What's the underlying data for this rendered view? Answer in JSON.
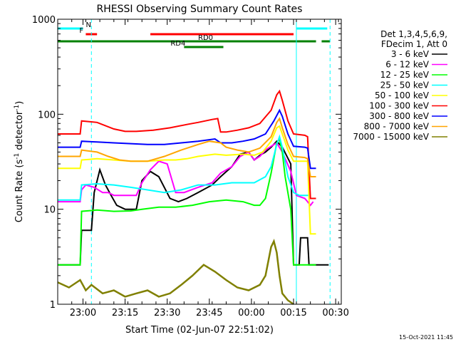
{
  "chart_data": {
    "type": "line",
    "title": "RHESSI Observing Summary Count Rates",
    "xlabel": "Start Time (02-Jun-07 22:51:02)",
    "ylabel_main": "Count Rate (s",
    "ylabel_sup1": "-1",
    "ylabel_mid": " detector",
    "ylabel_sup2": "-1",
    "ylabel_end": ")",
    "ylabel": "Count Rate (s-1 detector-1)",
    "y_scale": "log",
    "ylim": [
      1,
      1000
    ],
    "xlim_minutes": [
      0,
      101
    ],
    "x_ticks": [
      {
        "label": "23:00",
        "min": 9
      },
      {
        "label": "23:15",
        "min": 24
      },
      {
        "label": "23:30",
        "min": 39
      },
      {
        "label": "23:45",
        "min": 54
      },
      {
        "label": "00:00",
        "min": 69
      },
      {
        "label": "00:15",
        "min": 84
      },
      {
        "label": "00:30",
        "min": 99
      }
    ],
    "y_ticks": [
      {
        "label": "1",
        "value": 1
      },
      {
        "label": "10",
        "value": 10
      },
      {
        "label": "100",
        "value": 100
      },
      {
        "label": "1000",
        "value": 1000
      }
    ],
    "legend_header": [
      "Det 1,3,4,5,6,9,",
      "FDecim 1, Att 0"
    ],
    "legend_position": "right",
    "series": [
      {
        "name": "3 - 6 keV",
        "color": "#000000",
        "points": [
          [
            0,
            2.6
          ],
          [
            8,
            2.6
          ],
          [
            8.5,
            6
          ],
          [
            12,
            6
          ],
          [
            13,
            15
          ],
          [
            15,
            26
          ],
          [
            17,
            18
          ],
          [
            19,
            14
          ],
          [
            21,
            11
          ],
          [
            24,
            10
          ],
          [
            28,
            10
          ],
          [
            30,
            20
          ],
          [
            33,
            25
          ],
          [
            36,
            22
          ],
          [
            40,
            13
          ],
          [
            43,
            12
          ],
          [
            46,
            13
          ],
          [
            50,
            15
          ],
          [
            55,
            18
          ],
          [
            58,
            22
          ],
          [
            62,
            28
          ],
          [
            65,
            38
          ],
          [
            68,
            40
          ],
          [
            70,
            33
          ],
          [
            72,
            37
          ],
          [
            74,
            40
          ],
          [
            76,
            45
          ],
          [
            78,
            52
          ],
          [
            80,
            45
          ],
          [
            83,
            30
          ],
          [
            84,
            2.6
          ],
          [
            86,
            2.6
          ],
          [
            86.5,
            5
          ],
          [
            89,
            5
          ],
          [
            89.5,
            2.6
          ],
          [
            96,
            2.6
          ],
          [
            96.5,
            2.6
          ]
        ]
      },
      {
        "name": "6 - 12 keV",
        "color": "#ff00ff",
        "points": [
          [
            0,
            12
          ],
          [
            8,
            12
          ],
          [
            8.5,
            16
          ],
          [
            10,
            18
          ],
          [
            13,
            17
          ],
          [
            16,
            15
          ],
          [
            18,
            15
          ],
          [
            20,
            14
          ],
          [
            24,
            14
          ],
          [
            28,
            14
          ],
          [
            30,
            19
          ],
          [
            33,
            26
          ],
          [
            36,
            32
          ],
          [
            39,
            30
          ],
          [
            42,
            15
          ],
          [
            45,
            15
          ],
          [
            50,
            17
          ],
          [
            55,
            19
          ],
          [
            58,
            24
          ],
          [
            62,
            28
          ],
          [
            65,
            36
          ],
          [
            68,
            40
          ],
          [
            70,
            33
          ],
          [
            72,
            36
          ],
          [
            74,
            42
          ],
          [
            76,
            46
          ],
          [
            78,
            50
          ],
          [
            80,
            40
          ],
          [
            83,
            25
          ],
          [
            85,
            14
          ],
          [
            88,
            13
          ],
          [
            89,
            12
          ],
          [
            90,
            11
          ],
          [
            91,
            12
          ]
        ]
      },
      {
        "name": "12 - 25 keV",
        "color": "#00ff00",
        "points": [
          [
            0,
            2.6
          ],
          [
            8,
            2.6
          ],
          [
            8.5,
            9.5
          ],
          [
            14,
            9.8
          ],
          [
            20,
            9.5
          ],
          [
            26,
            9.6
          ],
          [
            30,
            10
          ],
          [
            36,
            10.5
          ],
          [
            42,
            10.5
          ],
          [
            48,
            11
          ],
          [
            54,
            12
          ],
          [
            60,
            12.5
          ],
          [
            66,
            12
          ],
          [
            70,
            11
          ],
          [
            72,
            11
          ],
          [
            74,
            13
          ],
          [
            76,
            24
          ],
          [
            78,
            50
          ],
          [
            79,
            55
          ],
          [
            80,
            40
          ],
          [
            81,
            22
          ],
          [
            83,
            10
          ],
          [
            84,
            2.6
          ],
          [
            88,
            2.6
          ],
          [
            88.5,
            2.6
          ],
          [
            91,
            2.6
          ],
          [
            92,
            2.6
          ]
        ]
      },
      {
        "name": "25 - 50 keV",
        "color": "#00ffff",
        "points": [
          [
            0,
            12.5
          ],
          [
            8,
            12.5
          ],
          [
            8.5,
            18
          ],
          [
            14,
            18.5
          ],
          [
            20,
            18
          ],
          [
            26,
            17
          ],
          [
            32,
            16
          ],
          [
            38,
            15
          ],
          [
            44,
            16
          ],
          [
            50,
            18
          ],
          [
            56,
            18
          ],
          [
            62,
            19
          ],
          [
            66,
            19
          ],
          [
            70,
            19
          ],
          [
            74,
            22
          ],
          [
            76,
            28
          ],
          [
            78,
            48
          ],
          [
            79,
            58
          ],
          [
            80,
            45
          ],
          [
            82,
            22
          ],
          [
            84,
            15
          ],
          [
            86,
            14
          ],
          [
            88,
            14
          ],
          [
            89,
            14
          ],
          [
            90,
            14
          ]
        ]
      },
      {
        "name": "50 - 100 keV",
        "color": "#ffff00",
        "points": [
          [
            0,
            27
          ],
          [
            8,
            27
          ],
          [
            8.5,
            33
          ],
          [
            14,
            34
          ],
          [
            20,
            33
          ],
          [
            26,
            32
          ],
          [
            32,
            32
          ],
          [
            38,
            33
          ],
          [
            42,
            33
          ],
          [
            46,
            34
          ],
          [
            50,
            36
          ],
          [
            56,
            38
          ],
          [
            60,
            37
          ],
          [
            66,
            38
          ],
          [
            70,
            37
          ],
          [
            73,
            40
          ],
          [
            76,
            52
          ],
          [
            78,
            72
          ],
          [
            79,
            75
          ],
          [
            80,
            62
          ],
          [
            82,
            42
          ],
          [
            84,
            32
          ],
          [
            88,
            32
          ],
          [
            89,
            32
          ],
          [
            90,
            5.5
          ],
          [
            91,
            5.5
          ],
          [
            92,
            5.5
          ]
        ]
      },
      {
        "name": "100 - 300 keV",
        "color": "#ff0000",
        "points": [
          [
            0,
            62
          ],
          [
            8,
            62
          ],
          [
            8.5,
            85
          ],
          [
            14,
            82
          ],
          [
            20,
            70
          ],
          [
            24,
            66
          ],
          [
            28,
            66
          ],
          [
            34,
            68
          ],
          [
            40,
            72
          ],
          [
            46,
            78
          ],
          [
            50,
            82
          ],
          [
            55,
            88
          ],
          [
            57,
            90
          ],
          [
            58,
            65
          ],
          [
            60,
            65
          ],
          [
            64,
            68
          ],
          [
            68,
            72
          ],
          [
            72,
            80
          ],
          [
            76,
            110
          ],
          [
            78,
            160
          ],
          [
            79,
            175
          ],
          [
            80,
            140
          ],
          [
            82,
            85
          ],
          [
            84,
            62
          ],
          [
            88,
            60
          ],
          [
            89,
            58
          ],
          [
            90,
            13
          ],
          [
            92,
            13
          ]
        ]
      },
      {
        "name": "300 - 800 keV",
        "color": "#0000ff",
        "points": [
          [
            0,
            45
          ],
          [
            8,
            45
          ],
          [
            8.5,
            52
          ],
          [
            14,
            51
          ],
          [
            20,
            50
          ],
          [
            26,
            49
          ],
          [
            32,
            48
          ],
          [
            38,
            48
          ],
          [
            44,
            50
          ],
          [
            50,
            52
          ],
          [
            56,
            55
          ],
          [
            58,
            50
          ],
          [
            62,
            50
          ],
          [
            66,
            52
          ],
          [
            70,
            55
          ],
          [
            74,
            62
          ],
          [
            77,
            85
          ],
          [
            79,
            110
          ],
          [
            80,
            95
          ],
          [
            82,
            62
          ],
          [
            84,
            46
          ],
          [
            88,
            45
          ],
          [
            89,
            44
          ],
          [
            90,
            27
          ],
          [
            92,
            27
          ]
        ]
      },
      {
        "name": "800 - 7000 keV",
        "color": "#ffa500",
        "points": [
          [
            0,
            36
          ],
          [
            8,
            36
          ],
          [
            8.5,
            42
          ],
          [
            14,
            40
          ],
          [
            18,
            36
          ],
          [
            22,
            33
          ],
          [
            26,
            32
          ],
          [
            32,
            32
          ],
          [
            38,
            36
          ],
          [
            44,
            42
          ],
          [
            50,
            48
          ],
          [
            54,
            52
          ],
          [
            58,
            50
          ],
          [
            60,
            45
          ],
          [
            64,
            42
          ],
          [
            68,
            40
          ],
          [
            72,
            44
          ],
          [
            76,
            58
          ],
          [
            78,
            82
          ],
          [
            79,
            90
          ],
          [
            80,
            72
          ],
          [
            82,
            48
          ],
          [
            84,
            36
          ],
          [
            88,
            35
          ],
          [
            89,
            34
          ],
          [
            90,
            22
          ],
          [
            92,
            22
          ]
        ]
      },
      {
        "name": "7000 - 15000 keV",
        "color": "#808000",
        "points": [
          [
            0,
            1.7
          ],
          [
            4,
            1.5
          ],
          [
            8,
            1.8
          ],
          [
            10,
            1.4
          ],
          [
            12,
            1.6
          ],
          [
            16,
            1.3
          ],
          [
            20,
            1.4
          ],
          [
            24,
            1.2
          ],
          [
            28,
            1.3
          ],
          [
            32,
            1.4
          ],
          [
            36,
            1.2
          ],
          [
            40,
            1.3
          ],
          [
            44,
            1.6
          ],
          [
            48,
            2.0
          ],
          [
            52,
            2.6
          ],
          [
            56,
            2.2
          ],
          [
            60,
            1.8
          ],
          [
            64,
            1.5
          ],
          [
            68,
            1.4
          ],
          [
            72,
            1.6
          ],
          [
            74,
            2.0
          ],
          [
            76,
            4.0
          ],
          [
            77,
            4.6
          ],
          [
            78,
            3.5
          ],
          [
            79,
            2.0
          ],
          [
            80,
            1.3
          ],
          [
            82,
            1.1
          ],
          [
            84,
            1.0
          ]
        ]
      }
    ],
    "flags": [
      {
        "label": "N",
        "color": "#00ffff",
        "segments": [
          [
            0,
            9
          ],
          [
            85,
            96
          ]
        ],
        "level": 1
      },
      {
        "label": "F",
        "color": "#ff0000",
        "segments": [
          [
            10,
            14
          ],
          [
            33,
            84
          ]
        ],
        "level": 2
      },
      {
        "label": "RD0",
        "color": "#008000",
        "segments": [
          [
            0,
            92
          ],
          [
            94,
            97
          ]
        ],
        "level": 3
      },
      {
        "label": "RD4",
        "color": "#008000",
        "segments": [
          [
            45,
            59
          ]
        ],
        "level": 4
      }
    ],
    "vlines_minutes": [
      {
        "min": 0,
        "style": "solid"
      },
      {
        "min": 12,
        "style": "dashed"
      },
      {
        "min": 85,
        "style": "solid"
      },
      {
        "min": 97,
        "style": "dashed"
      }
    ],
    "footer_date": "15-Oct-2021 11:45"
  }
}
